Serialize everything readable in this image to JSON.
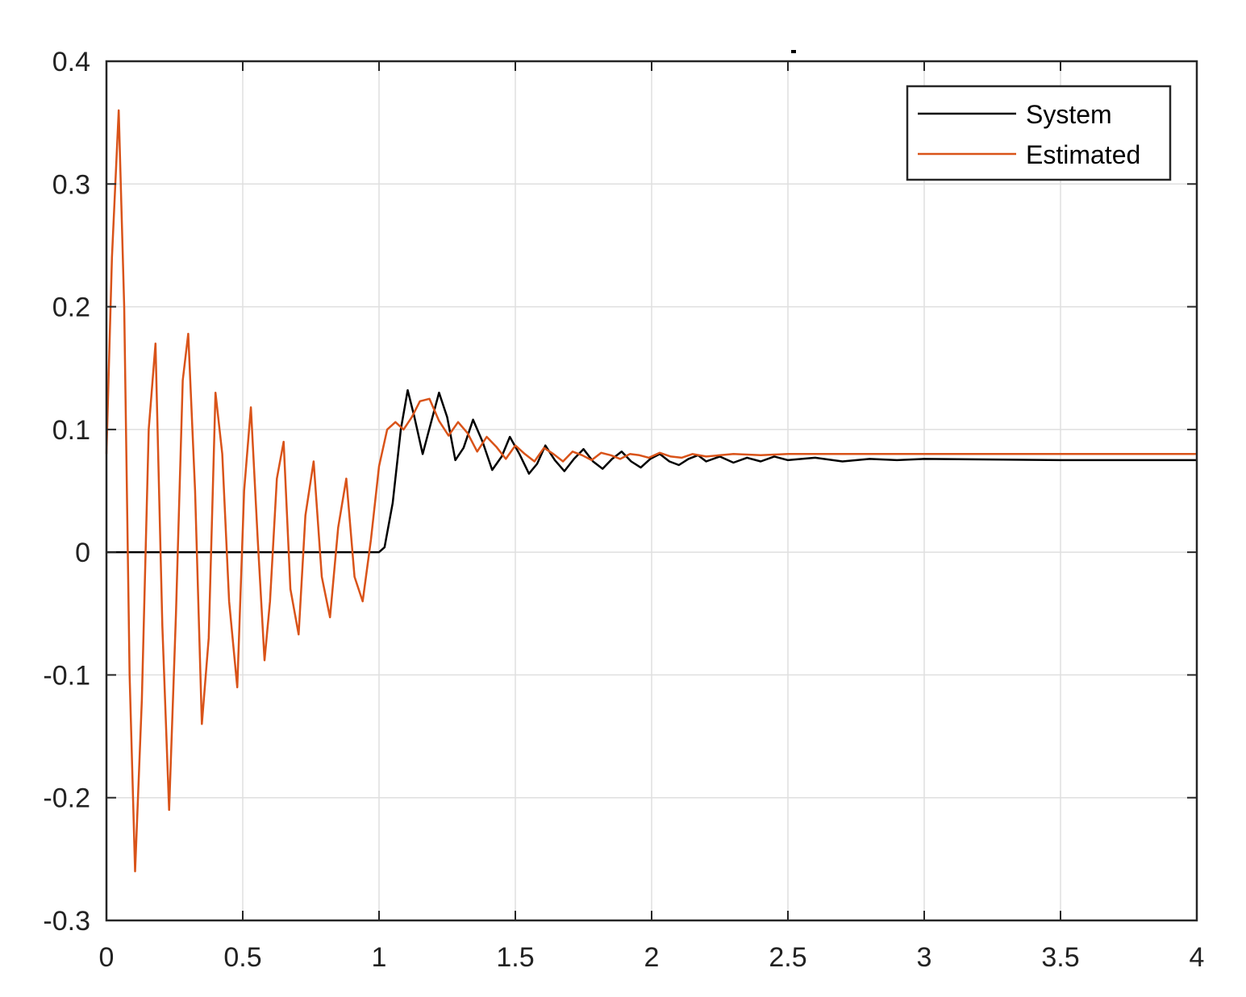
{
  "chart_data": {
    "type": "line",
    "title": "",
    "xlabel": "",
    "ylabel": "",
    "xlim": [
      0,
      4
    ],
    "ylim": [
      -0.3,
      0.4
    ],
    "grid": true,
    "legend_position": "top-right",
    "x_ticks": [
      0,
      0.5,
      1,
      1.5,
      2,
      2.5,
      3,
      3.5,
      4
    ],
    "x_tick_labels": [
      "0",
      "0.5",
      "1",
      "1.5",
      "2",
      "2.5",
      "3",
      "3.5",
      "4"
    ],
    "y_ticks": [
      -0.3,
      -0.2,
      -0.1,
      0,
      0.1,
      0.2,
      0.3,
      0.4
    ],
    "y_tick_labels": [
      "-0.3",
      "-0.2",
      "-0.1",
      "0",
      "0.1",
      "0.2",
      "0.3",
      "0.4"
    ],
    "series": [
      {
        "name": "System",
        "color": "#000000",
        "x": [
          0,
          0.5,
          1.0,
          1.02,
          1.05,
          1.08,
          1.105,
          1.13,
          1.16,
          1.19,
          1.22,
          1.25,
          1.28,
          1.31,
          1.345,
          1.38,
          1.415,
          1.45,
          1.48,
          1.515,
          1.55,
          1.58,
          1.61,
          1.645,
          1.68,
          1.715,
          1.75,
          1.785,
          1.82,
          1.855,
          1.89,
          1.925,
          1.96,
          1.995,
          2.03,
          2.065,
          2.1,
          2.135,
          2.17,
          2.2,
          2.25,
          2.3,
          2.35,
          2.4,
          2.45,
          2.5,
          2.6,
          2.7,
          2.8,
          2.9,
          3.0,
          3.5,
          4.0
        ],
        "y": [
          0,
          0,
          0,
          0.004,
          0.04,
          0.1,
          0.132,
          0.11,
          0.08,
          0.105,
          0.13,
          0.11,
          0.075,
          0.085,
          0.108,
          0.09,
          0.067,
          0.078,
          0.094,
          0.08,
          0.064,
          0.072,
          0.087,
          0.075,
          0.066,
          0.076,
          0.084,
          0.074,
          0.068,
          0.076,
          0.082,
          0.074,
          0.069,
          0.076,
          0.08,
          0.074,
          0.071,
          0.076,
          0.079,
          0.074,
          0.078,
          0.073,
          0.077,
          0.074,
          0.078,
          0.075,
          0.077,
          0.074,
          0.076,
          0.075,
          0.076,
          0.075,
          0.075
        ]
      },
      {
        "name": "Estimated",
        "color": "#d95319",
        "x": [
          0,
          0.02,
          0.045,
          0.065,
          0.085,
          0.105,
          0.13,
          0.155,
          0.18,
          0.205,
          0.23,
          0.255,
          0.28,
          0.3,
          0.325,
          0.35,
          0.375,
          0.4,
          0.425,
          0.45,
          0.48,
          0.505,
          0.53,
          0.555,
          0.58,
          0.6,
          0.625,
          0.65,
          0.675,
          0.705,
          0.73,
          0.76,
          0.79,
          0.82,
          0.85,
          0.88,
          0.91,
          0.94,
          0.97,
          1.0,
          1.03,
          1.06,
          1.09,
          1.12,
          1.15,
          1.185,
          1.22,
          1.255,
          1.29,
          1.325,
          1.36,
          1.395,
          1.43,
          1.465,
          1.5,
          1.535,
          1.57,
          1.605,
          1.64,
          1.675,
          1.71,
          1.745,
          1.78,
          1.815,
          1.85,
          1.885,
          1.92,
          1.955,
          1.99,
          2.03,
          2.07,
          2.11,
          2.15,
          2.2,
          2.3,
          2.4,
          2.5,
          3.0,
          4.0
        ],
        "y": [
          0.08,
          0.24,
          0.36,
          0.2,
          -0.1,
          -0.26,
          -0.12,
          0.1,
          0.17,
          -0.06,
          -0.21,
          -0.05,
          0.14,
          0.178,
          0.05,
          -0.14,
          -0.07,
          0.13,
          0.08,
          -0.04,
          -0.11,
          0.05,
          0.118,
          0.01,
          -0.088,
          -0.04,
          0.06,
          0.09,
          -0.03,
          -0.067,
          0.03,
          0.074,
          -0.02,
          -0.053,
          0.02,
          0.06,
          -0.02,
          -0.04,
          0.01,
          0.07,
          0.1,
          0.106,
          0.1,
          0.11,
          0.123,
          0.125,
          0.107,
          0.095,
          0.106,
          0.097,
          0.082,
          0.094,
          0.086,
          0.076,
          0.087,
          0.08,
          0.074,
          0.085,
          0.08,
          0.074,
          0.082,
          0.079,
          0.075,
          0.081,
          0.079,
          0.076,
          0.08,
          0.079,
          0.077,
          0.081,
          0.078,
          0.077,
          0.08,
          0.078,
          0.08,
          0.079,
          0.08,
          0.08,
          0.08
        ]
      }
    ]
  }
}
